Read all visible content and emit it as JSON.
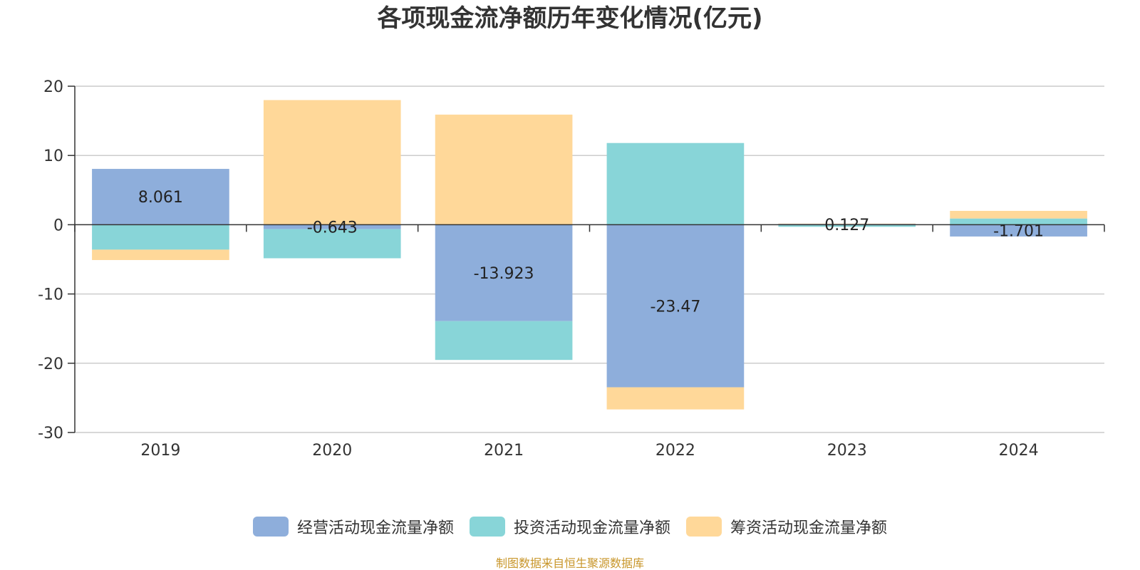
{
  "chart_data": {
    "type": "bar",
    "stacked": true,
    "title": "各项现金流净额历年变化情况(亿元)",
    "categories": [
      "2019",
      "2020",
      "2021",
      "2022",
      "2023",
      "2024"
    ],
    "series": [
      {
        "name": "经营活动现金流量净额",
        "color": "#8eaedb",
        "values": [
          8.061,
          -0.643,
          -13.923,
          -23.47,
          0.127,
          -1.701
        ]
      },
      {
        "name": "投资活动现金流量净额",
        "color": "#88d5d8",
        "values": [
          -3.6,
          -4.2,
          -5.6,
          11.8,
          -0.3,
          0.9
        ]
      },
      {
        "name": "筹资活动现金流量净额",
        "color": "#ffd899",
        "values": [
          -1.5,
          18.0,
          15.9,
          -3.2,
          0.05,
          1.1
        ]
      }
    ],
    "data_labels": [
      "8.061",
      "-0.643",
      "-13.923",
      "-23.47",
      "0.127",
      "-1.701"
    ],
    "ylim": [
      -30,
      20
    ],
    "yticks": [
      "20",
      "10",
      "0",
      "-10",
      "-20",
      "-30"
    ],
    "ytick_values": [
      20,
      10,
      0,
      -10,
      -20,
      -30
    ],
    "grid": true,
    "legend_position": "bottom"
  },
  "source_note": "制图数据来自恒生聚源数据库"
}
